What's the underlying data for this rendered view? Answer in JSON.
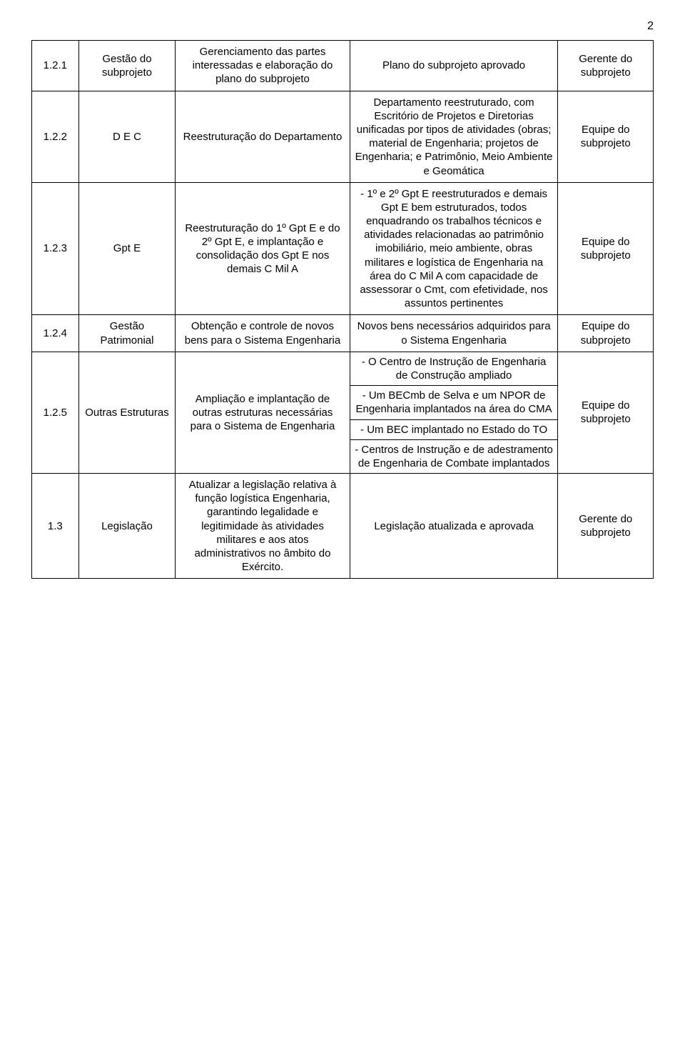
{
  "page_number": "2",
  "rows": [
    {
      "id": "1.2.1",
      "col1": "Gestão do subprojeto",
      "col2": "Gerenciamento das partes interessadas e elaboração do plano do subprojeto",
      "col3": "Plano do subprojeto aprovado",
      "col4": "Gerente do subprojeto"
    },
    {
      "id": "1.2.2",
      "col1": "D E C",
      "col2": "Reestruturação do Departamento",
      "col3": "Departamento reestruturado, com Escritório de Projetos e Diretorias unificadas por tipos de atividades (obras; material de Engenharia; projetos de Engenharia; e Patrimônio, Meio Ambiente e Geomática",
      "col4": "Equipe do subprojeto"
    },
    {
      "id": "1.2.3",
      "col1": "Gpt E",
      "col2": "Reestruturação do 1º Gpt E e do 2º Gpt E, e implantação e consolidação dos Gpt E nos demais C Mil A",
      "col3": "- 1º e 2º Gpt E reestruturados e demais Gpt E bem estruturados, todos enquadrando os trabalhos técnicos e atividades relacionadas ao patrimônio imobiliário, meio ambiente, obras militares e logística de Engenharia na área do C Mil A com capacidade de assessorar o Cmt, com efetividade, nos assuntos pertinentes",
      "col4": "Equipe do subprojeto"
    },
    {
      "id": "1.2.4",
      "col1": "Gestão Patrimonial",
      "col2": "Obtenção e controle de novos bens para o Sistema Engenharia",
      "col3": "Novos bens necessários adquiridos para o Sistema Engenharia",
      "col4": "Equipe do subprojeto"
    },
    {
      "id": "1.2.5",
      "col1": "Outras Estruturas",
      "col2": "Ampliação e implantação de outras estruturas necessárias para o Sistema de Engenharia",
      "col3": {
        "p1": "- O Centro de Instrução de Engenharia de Construção ampliado",
        "p2": "- Um BECmb de Selva e um NPOR de Engenharia implantados na área do CMA",
        "p3": "- Um BEC implantado no Estado do TO",
        "p4": "- Centros de Instrução e de adestramento de Engenharia de Combate implantados"
      },
      "col4": "Equipe do subprojeto"
    },
    {
      "id": "1.3",
      "col1": "Legislação",
      "col2": "Atualizar a legislação relativa à função logística Engenharia, garantindo legalidade e legitimidade às atividades militares e aos atos administrativos no âmbito do Exército.",
      "col3": "Legislação atualizada e aprovada",
      "col4": "Gerente do subprojeto"
    }
  ]
}
